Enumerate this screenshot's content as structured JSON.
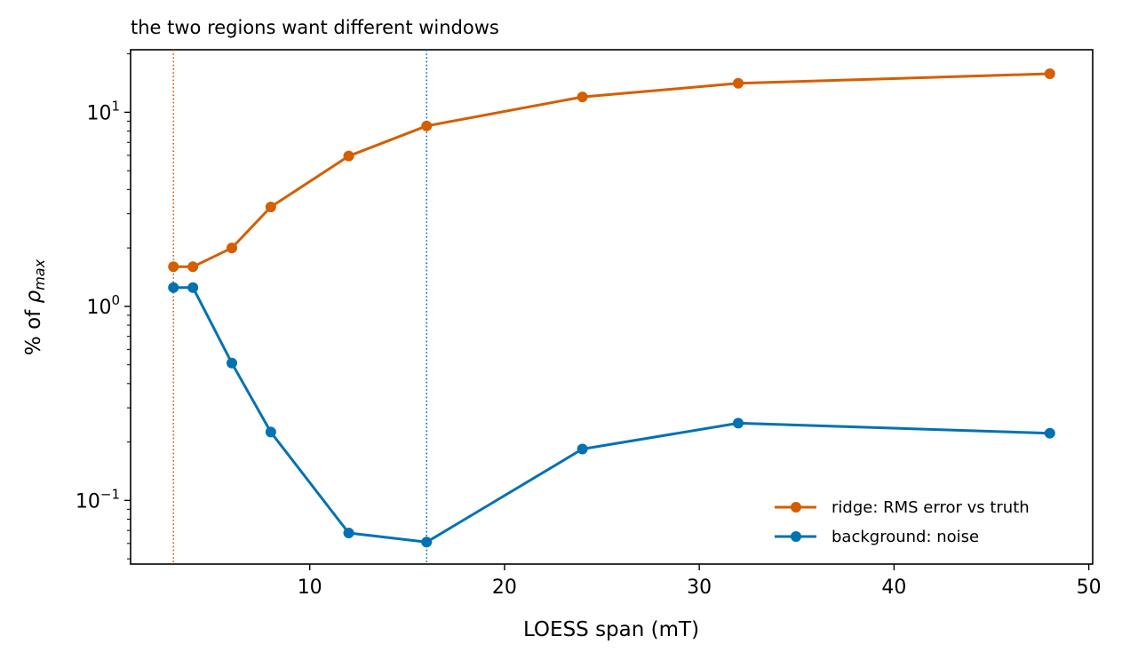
{
  "chart_data": {
    "type": "line",
    "title": "the two regions want different windows",
    "xlabel": "LOESS span (mT)",
    "ylabel_prefix": "% of ",
    "ylabel_symbol": "ρ",
    "ylabel_subscript": "max",
    "xlim": [
      0.8,
      50.2
    ],
    "ylim": [
      0.047,
      21
    ],
    "yscale": "log",
    "grid": false,
    "legend_position": "lower-right",
    "x_ticks": [
      10,
      20,
      30,
      40,
      50
    ],
    "y_ticks": [
      {
        "value": 0.1,
        "base": "10",
        "exp": "−1"
      },
      {
        "value": 1,
        "base": "10",
        "exp": "0"
      },
      {
        "value": 10,
        "base": "10",
        "exp": "1"
      }
    ],
    "vlines": [
      {
        "x": 3,
        "color": "#d55e00",
        "style": "dotted"
      },
      {
        "x": 16,
        "color": "#0072b2",
        "style": "dotted"
      }
    ],
    "series": [
      {
        "name": "ridge: RMS error vs truth",
        "color": "#d55e00",
        "x": [
          3,
          4,
          6,
          8,
          12,
          16,
          24,
          32,
          48
        ],
        "y": [
          1.6,
          1.6,
          2.0,
          3.25,
          5.95,
          8.5,
          12.0,
          14.1,
          15.8
        ]
      },
      {
        "name": "background: noise",
        "color": "#0072b2",
        "x": [
          3,
          4,
          6,
          8,
          12,
          16,
          24,
          32,
          48
        ],
        "y": [
          1.25,
          1.25,
          0.51,
          0.225,
          0.068,
          0.061,
          0.184,
          0.25,
          0.222
        ]
      }
    ]
  }
}
